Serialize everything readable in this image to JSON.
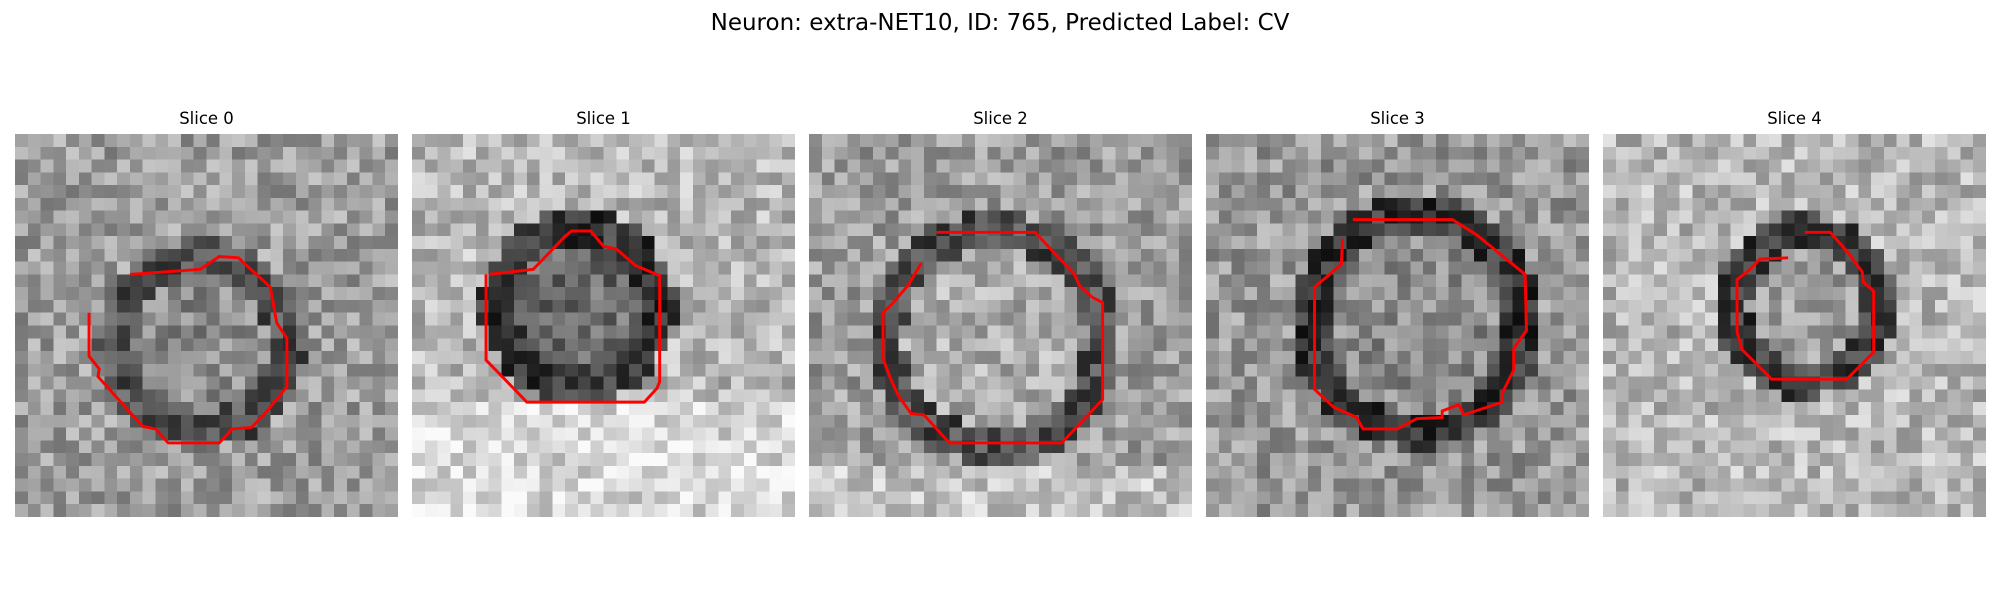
{
  "figure": {
    "title": "Neuron: extra-NET10, ID: 765, Predicted Label: CV"
  },
  "slices": [
    {
      "label": "Slice 0"
    },
    {
      "label": "Slice 1"
    },
    {
      "label": "Slice 2"
    },
    {
      "label": "Slice 3"
    },
    {
      "label": "Slice 4"
    }
  ],
  "colors": {
    "contour": "#ff0000",
    "background": "#ffffff"
  }
}
